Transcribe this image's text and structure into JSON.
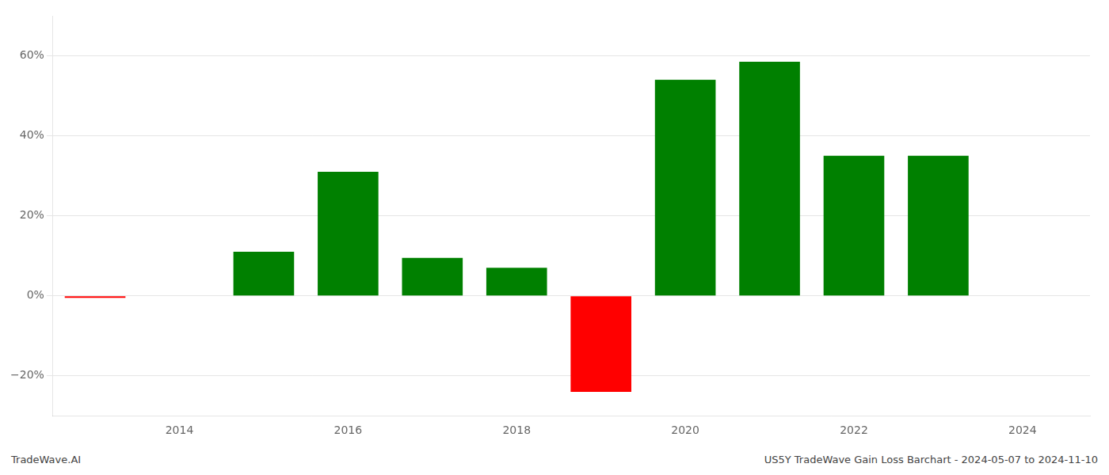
{
  "chart_data": {
    "type": "bar",
    "x": [
      2013,
      2015,
      2016,
      2017,
      2018,
      2019,
      2020,
      2021,
      2022,
      2023
    ],
    "values": [
      -0.5,
      11.0,
      31.0,
      9.5,
      7.0,
      -24.0,
      54.0,
      58.5,
      35.0,
      35.0
    ],
    "colors": [
      "#ff0000",
      "#008000",
      "#008000",
      "#008000",
      "#008000",
      "#ff0000",
      "#008000",
      "#008000",
      "#008000",
      "#008000"
    ],
    "xlim": [
      2012.5,
      2024.8
    ],
    "xticks": [
      2014,
      2016,
      2018,
      2020,
      2022,
      2024
    ],
    "ylim": [
      -30,
      70
    ],
    "yticks": [
      {
        "value": -20,
        "label": "−20%"
      },
      {
        "value": 0,
        "label": "0%"
      },
      {
        "value": 20,
        "label": "20%"
      },
      {
        "value": 40,
        "label": "40%"
      },
      {
        "value": 60,
        "label": "60%"
      }
    ],
    "grid": true,
    "annotations": [
      "TradeWave.AI",
      "US5Y TradeWave Gain Loss Barchart - 2024-05-07 to 2024-11-10"
    ]
  }
}
